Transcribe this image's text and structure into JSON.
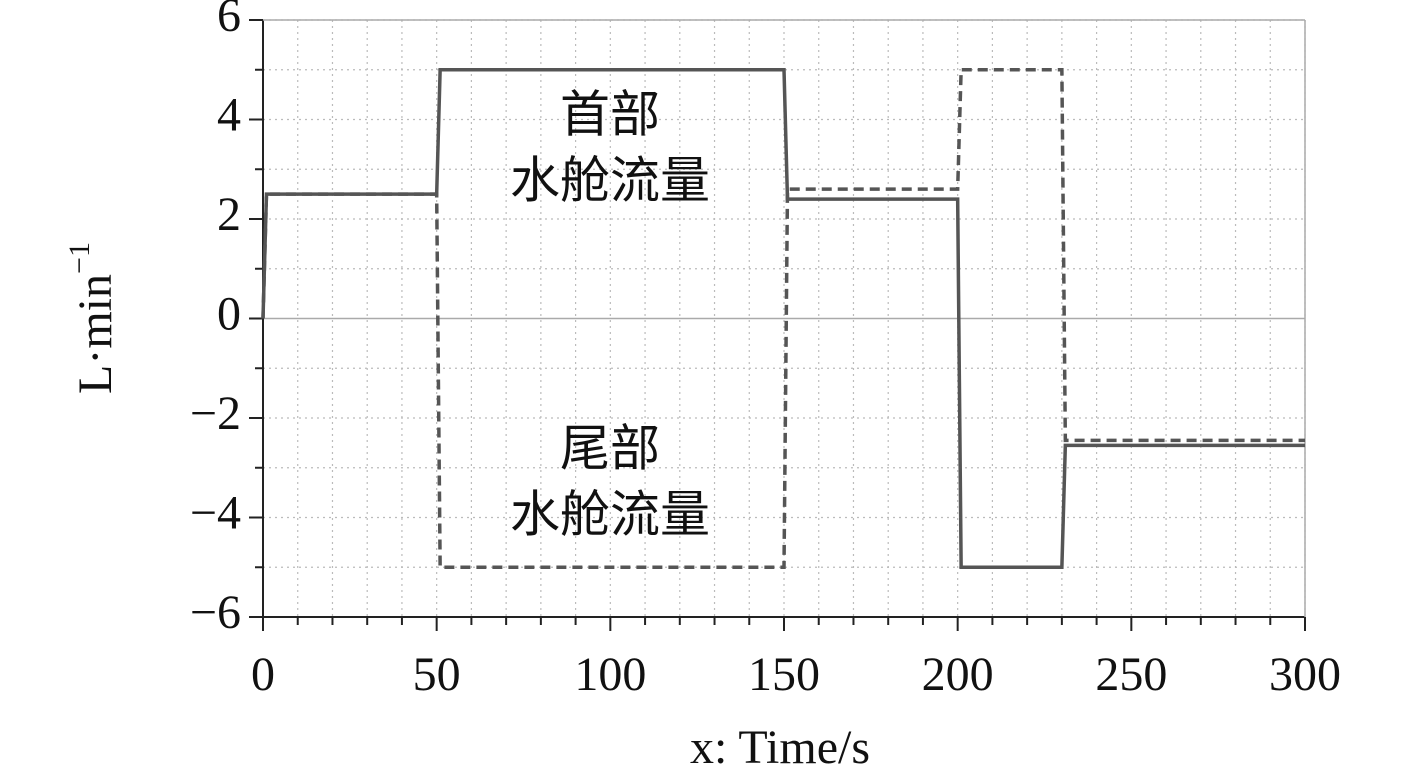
{
  "chart_data": {
    "type": "line",
    "y_label": {
      "base": "L·min",
      "sup": "−1"
    },
    "x_label": "x: Time/s",
    "xlim": [
      0,
      300
    ],
    "xticks": [
      0,
      50,
      100,
      150,
      200,
      250,
      300
    ],
    "ylim": [
      -6,
      6
    ],
    "yticks": [
      {
        "value": -6,
        "label": "−6"
      },
      {
        "value": -4,
        "label": "−4"
      },
      {
        "value": -2,
        "label": "−2"
      },
      0,
      2,
      4,
      6
    ],
    "grid": true,
    "series": [
      {
        "color": "#555555",
        "dash": false,
        "x": [
          0,
          1,
          50,
          51,
          150,
          151,
          200,
          201,
          230,
          231,
          300
        ],
        "values": [
          0,
          2.5,
          2.5,
          5,
          5,
          2.4,
          2.4,
          -5,
          -5,
          -2.55,
          -2.55
        ]
      },
      {
        "color": "#555555",
        "dash": true,
        "x": [
          0,
          1,
          50,
          51,
          150,
          151,
          200,
          201,
          230,
          231,
          300
        ],
        "values": [
          0,
          2.5,
          2.5,
          -5,
          -5,
          2.6,
          2.6,
          5,
          5,
          -2.45,
          -2.45
        ]
      }
    ],
    "annotations": [
      {
        "lines": [
          "首部",
          "水舱流量"
        ]
      },
      {
        "lines": [
          "尾部",
          "水舱流量"
        ]
      }
    ]
  }
}
